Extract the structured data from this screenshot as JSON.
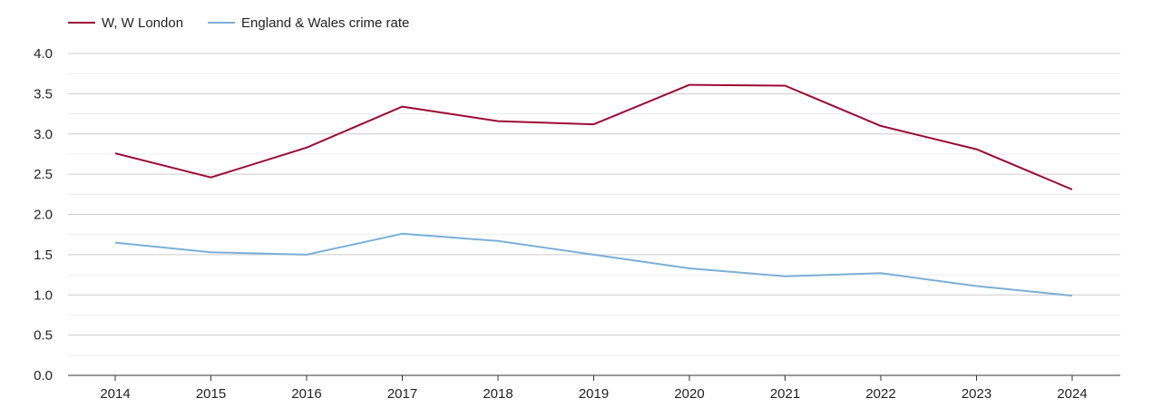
{
  "chart_data": {
    "type": "line",
    "title": "",
    "xlabel": "",
    "ylabel": "",
    "x": [
      "2014",
      "2015",
      "2016",
      "2017",
      "2018",
      "2019",
      "2020",
      "2021",
      "2022",
      "2023",
      "2024"
    ],
    "ylim": [
      0,
      4.0
    ],
    "yticks": [
      "0.0",
      "0.5",
      "1.0",
      "1.5",
      "2.0",
      "2.5",
      "3.0",
      "3.5",
      "4.0"
    ],
    "grid": true,
    "legend_position": "top-left",
    "series": [
      {
        "name": "W, W London",
        "color": "#9b0a34",
        "values": [
          2.76,
          2.46,
          2.83,
          3.34,
          3.16,
          3.12,
          3.61,
          3.6,
          3.1,
          2.81,
          2.31
        ]
      },
      {
        "name": "England & Wales crime rate",
        "color": "#7bafd4",
        "values": [
          1.65,
          1.53,
          1.5,
          1.76,
          1.67,
          1.5,
          1.33,
          1.23,
          1.27,
          1.11,
          0.99
        ]
      }
    ]
  }
}
